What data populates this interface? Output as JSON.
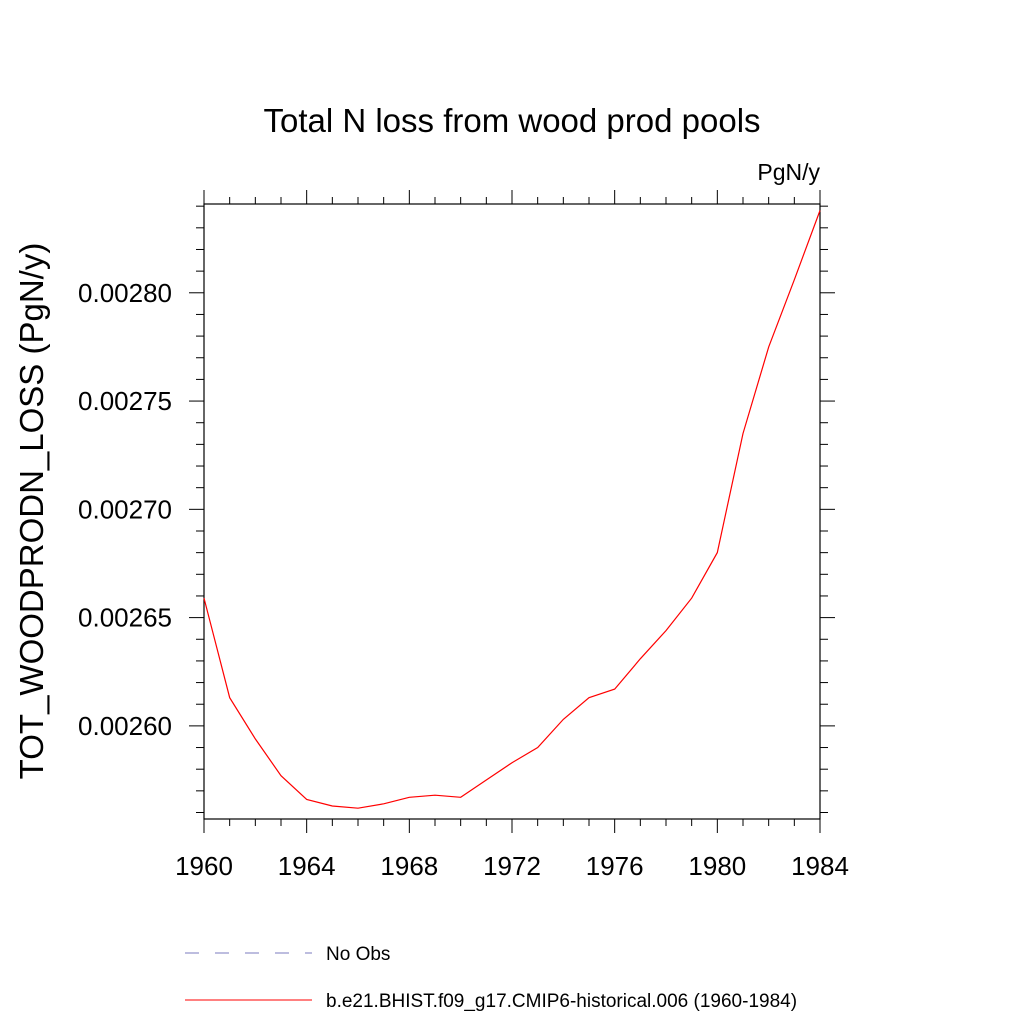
{
  "chart_data": {
    "type": "line",
    "title": "Total N loss from wood prod pools",
    "units_label": "PgN/y",
    "ylabel": "TOT_WOODPRODN_LOSS  (PgN/y)",
    "xlabel": "",
    "xlim": [
      1960,
      1984
    ],
    "ylim": [
      0.002557,
      0.002841
    ],
    "x_ticks": [
      1960,
      1964,
      1968,
      1972,
      1976,
      1980,
      1984
    ],
    "x_tick_labels": [
      "1960",
      "1964",
      "1968",
      "1972",
      "1976",
      "1980",
      "1984"
    ],
    "y_ticks": [
      0.0026,
      0.00265,
      0.0027,
      0.00275,
      0.0028
    ],
    "y_tick_labels": [
      "0.00260",
      "0.00265",
      "0.00270",
      "0.00275",
      "0.00280"
    ],
    "grid": false,
    "legend_position": "bottom",
    "series": [
      {
        "name": "No Obs",
        "color": "#7b7bbf",
        "dash": "dashed",
        "x": [],
        "y": []
      },
      {
        "name": "b.e21.BHIST.f09_g17.CMIP6-historical.006 (1960-1984)",
        "color": "#ff0000",
        "dash": "solid",
        "x": [
          1960,
          1961,
          1962,
          1963,
          1964,
          1965,
          1966,
          1967,
          1968,
          1969,
          1970,
          1971,
          1972,
          1973,
          1974,
          1975,
          1976,
          1977,
          1978,
          1979,
          1980,
          1981,
          1982,
          1983,
          1984
        ],
        "y": [
          0.002659,
          0.002613,
          0.002594,
          0.002577,
          0.002566,
          0.002563,
          0.002562,
          0.002564,
          0.002567,
          0.002568,
          0.002567,
          0.002575,
          0.002583,
          0.00259,
          0.002603,
          0.002613,
          0.002617,
          0.002631,
          0.002644,
          0.002659,
          0.00268,
          0.002735,
          0.002775,
          0.002806,
          0.002838
        ]
      }
    ]
  }
}
